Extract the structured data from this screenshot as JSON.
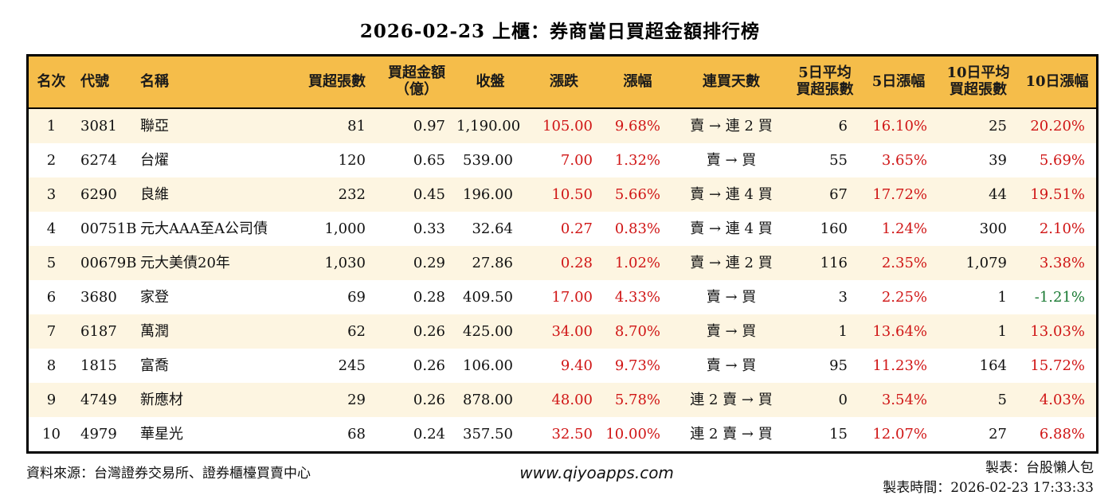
{
  "title": "2026-02-23 上櫃：券商當日買超金額排行榜",
  "colors": {
    "header_bg": "#F5BD4A",
    "row_stripe": "#FDF5E1",
    "up_red": "#D01616",
    "down_green": "#1A7A33",
    "border": "#000000"
  },
  "table": {
    "headers": [
      "名次",
      "代號",
      "名稱",
      "買超張數",
      "買超金額\n（億）",
      "收盤",
      "漲跌",
      "漲幅",
      "連買天數",
      "5日平均\n買超張數",
      "5日漲幅",
      "10日平均\n買超張數",
      "10日漲幅"
    ],
    "columns": [
      {
        "key": "rank",
        "align": "center",
        "colored": false
      },
      {
        "key": "code",
        "align": "left",
        "colored": false
      },
      {
        "key": "name",
        "align": "left",
        "colored": false
      },
      {
        "key": "buy-volume",
        "align": "right",
        "colored": false
      },
      {
        "key": "buy-amount",
        "align": "right",
        "colored": false
      },
      {
        "key": "close",
        "align": "right",
        "colored": false
      },
      {
        "key": "change",
        "align": "right",
        "colored": true
      },
      {
        "key": "change-pct",
        "align": "right",
        "colored": true
      },
      {
        "key": "streak",
        "align": "center",
        "colored": false
      },
      {
        "key": "avg5-volume",
        "align": "right",
        "colored": false
      },
      {
        "key": "pct5",
        "align": "right",
        "colored": true
      },
      {
        "key": "avg10-volume",
        "align": "right",
        "colored": false
      },
      {
        "key": "pct10",
        "align": "right",
        "colored": true
      }
    ],
    "rows": [
      [
        "1",
        "3081",
        "聯亞",
        "81",
        "0.97",
        "1,190.00",
        "105.00",
        "9.68%",
        "賣 → 連 2 買",
        "6",
        "16.10%",
        "25",
        "20.20%"
      ],
      [
        "2",
        "6274",
        "台燿",
        "120",
        "0.65",
        "539.00",
        "7.00",
        "1.32%",
        "賣 → 買",
        "55",
        "3.65%",
        "39",
        "5.69%"
      ],
      [
        "3",
        "6290",
        "良維",
        "232",
        "0.45",
        "196.00",
        "10.50",
        "5.66%",
        "賣 → 連 4 買",
        "67",
        "17.72%",
        "44",
        "19.51%"
      ],
      [
        "4",
        "00751B",
        "元大AAA至A公司債",
        "1,000",
        "0.33",
        "32.64",
        "0.27",
        "0.83%",
        "賣 → 連 4 買",
        "160",
        "1.24%",
        "300",
        "2.10%"
      ],
      [
        "5",
        "00679B",
        "元大美債20年",
        "1,030",
        "0.29",
        "27.86",
        "0.28",
        "1.02%",
        "賣 → 連 2 買",
        "116",
        "2.35%",
        "1,079",
        "3.38%"
      ],
      [
        "6",
        "3680",
        "家登",
        "69",
        "0.28",
        "409.50",
        "17.00",
        "4.33%",
        "賣 → 買",
        "3",
        "2.25%",
        "1",
        "-1.21%"
      ],
      [
        "7",
        "6187",
        "萬潤",
        "62",
        "0.26",
        "425.00",
        "34.00",
        "8.70%",
        "賣 → 買",
        "1",
        "13.64%",
        "1",
        "13.03%"
      ],
      [
        "8",
        "1815",
        "富喬",
        "245",
        "0.26",
        "106.00",
        "9.40",
        "9.73%",
        "賣 → 買",
        "95",
        "11.23%",
        "164",
        "15.72%"
      ],
      [
        "9",
        "4749",
        "新應材",
        "29",
        "0.26",
        "878.00",
        "48.00",
        "5.78%",
        "連 2 賣 → 買",
        "0",
        "3.54%",
        "5",
        "4.03%"
      ],
      [
        "10",
        "4979",
        "華星光",
        "68",
        "0.24",
        "357.50",
        "32.50",
        "10.00%",
        "連 2 賣 → 買",
        "15",
        "12.07%",
        "27",
        "6.88%"
      ]
    ]
  },
  "footer": {
    "source": "資料來源：台灣證券交易所、證券櫃檯買賣中心",
    "website": "www.qiyoapps.com",
    "maker": "製表：台股懶人包",
    "made_time": "製表時間：2026-02-23 17:33:33"
  }
}
